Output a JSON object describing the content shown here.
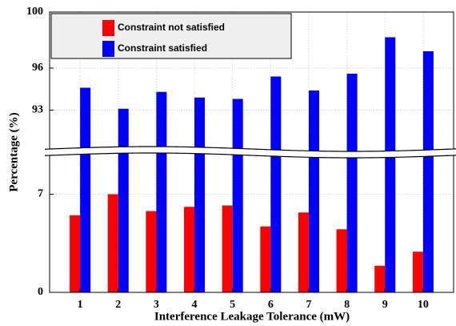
{
  "chart_data": {
    "type": "bar",
    "xlabel": "Interference Leakage Tolerance (mW)",
    "ylabel": "Percentage (%)",
    "categories": [
      "1",
      "2",
      "3",
      "4",
      "5",
      "6",
      "7",
      "8",
      "9",
      "10"
    ],
    "series": [
      {
        "name": "Constraint not satisfied",
        "color": "#ff0000",
        "values": [
          5.5,
          7.0,
          5.8,
          6.1,
          6.2,
          4.7,
          5.7,
          4.5,
          1.9,
          2.9
        ]
      },
      {
        "name": "Constraint satisfied",
        "color": "#0000ff",
        "values": [
          94.6,
          93.1,
          94.3,
          93.9,
          93.8,
          95.4,
          94.4,
          95.6,
          98.2,
          97.2
        ]
      }
    ],
    "ylim": [
      0,
      100
    ],
    "y_break": [
      10,
      90
    ],
    "yticks": [
      0,
      7,
      93,
      96,
      100
    ],
    "grid": true,
    "legend": "upper left"
  }
}
